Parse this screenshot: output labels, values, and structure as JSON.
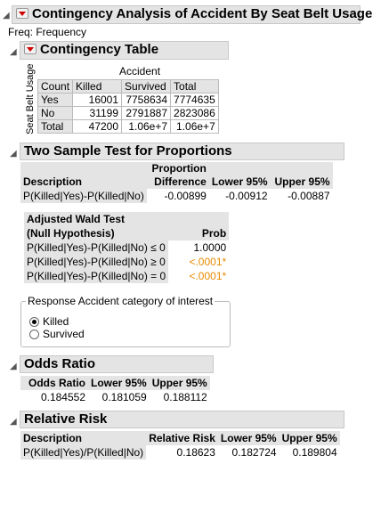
{
  "title": "Contingency Analysis of Accident By Seat Belt Usage",
  "freq_label": "Freq: Frequency",
  "contingency": {
    "title": "Contingency Table",
    "col_var": "Accident",
    "row_var": "Seat Belt Usage",
    "corner": "Count",
    "columns": [
      "Killed",
      "Survived",
      "Total"
    ],
    "rows": [
      {
        "label": "Yes",
        "values": [
          "16001",
          "7758634",
          "7774635"
        ]
      },
      {
        "label": "No",
        "values": [
          "31199",
          "2791887",
          "2823086"
        ]
      },
      {
        "label": "Total",
        "values": [
          "47200",
          "1.06e+7",
          "1.06e+7"
        ]
      }
    ]
  },
  "two_sample": {
    "title": "Two Sample Test for Proportions",
    "headers": {
      "desc": "Description",
      "prop1": "Proportion",
      "prop2": "Difference",
      "lower": "Lower 95%",
      "upper": "Upper 95%"
    },
    "row": {
      "desc": "P(Killed|Yes)-P(Killed|No)",
      "diff": "-0.00899",
      "lower": "-0.00912",
      "upper": "-0.00887"
    },
    "wald": {
      "header1": "Adjusted Wald Test",
      "header2": "(Null Hypothesis)",
      "prob_header": "Prob",
      "rows": [
        {
          "hyp": "P(Killed|Yes)-P(Killed|No) ≤ 0",
          "prob": "1.0000",
          "sig": false
        },
        {
          "hyp": "P(Killed|Yes)-P(Killed|No) ≥ 0",
          "prob": "<.0001*",
          "sig": true
        },
        {
          "hyp": "P(Killed|Yes)-P(Killed|No) = 0",
          "prob": "<.0001*",
          "sig": true
        }
      ]
    },
    "response_legend": "Response Accident category of interest",
    "options": [
      {
        "label": "Killed",
        "selected": true
      },
      {
        "label": "Survived",
        "selected": false
      }
    ]
  },
  "odds": {
    "title": "Odds Ratio",
    "headers": [
      "Odds Ratio",
      "Lower 95%",
      "Upper 95%"
    ],
    "values": [
      "0.184552",
      "0.181059",
      "0.188112"
    ]
  },
  "relrisk": {
    "title": "Relative Risk",
    "headers": [
      "Description",
      "Relative Risk",
      "Lower 95%",
      "Upper 95%"
    ],
    "row": [
      "P(Killed|Yes)/P(Killed|No)",
      "0.18623",
      "0.182724",
      "0.189804"
    ]
  },
  "colors": {
    "orange": "#e68a00",
    "red": "#d00000",
    "header_bg": "#e4e4e4"
  }
}
